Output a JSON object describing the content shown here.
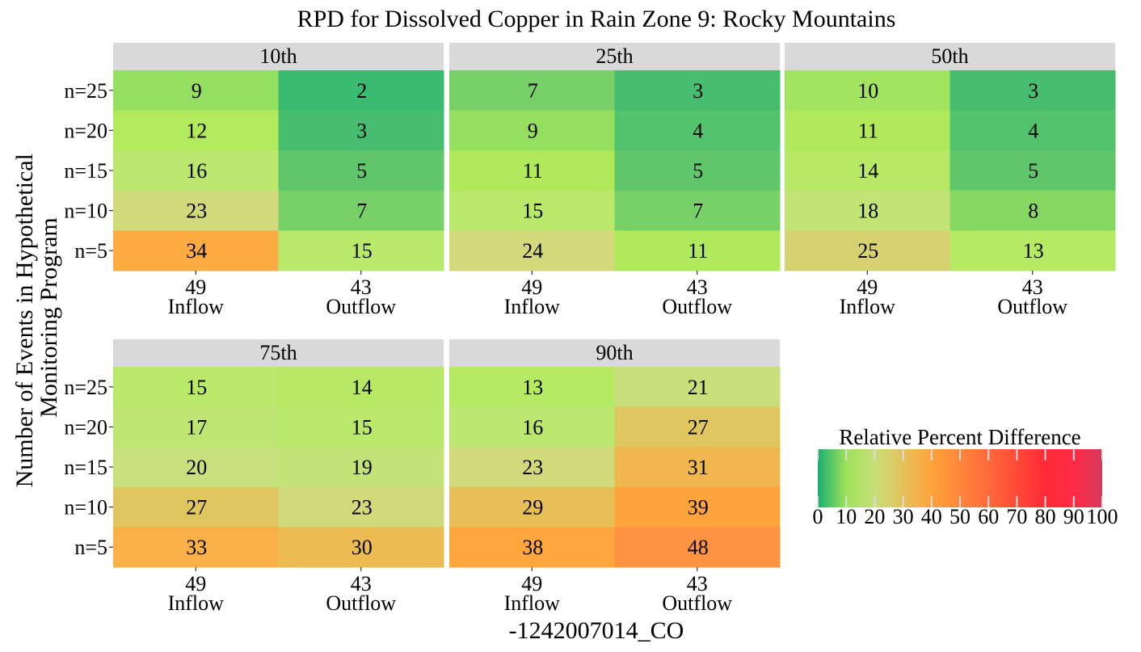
{
  "chart_data": {
    "type": "heatmap",
    "title": "RPD for Dissolved Copper in Rain Zone 9: Rocky Mountains",
    "xlabel": "-1242007014_CO",
    "ylabel_lines": [
      "Number of Events in Hypothetical",
      "Monitoring Program"
    ],
    "rows": [
      "n=25",
      "n=20",
      "n=15",
      "n=10",
      "n=5"
    ],
    "columns": [
      {
        "count": "49",
        "name": "Inflow"
      },
      {
        "count": "43",
        "name": "Outflow"
      }
    ],
    "panels": [
      {
        "label": "10th",
        "values": [
          [
            9,
            2
          ],
          [
            12,
            3
          ],
          [
            16,
            5
          ],
          [
            23,
            7
          ],
          [
            34,
            15
          ]
        ]
      },
      {
        "label": "25th",
        "values": [
          [
            7,
            3
          ],
          [
            9,
            4
          ],
          [
            11,
            5
          ],
          [
            15,
            7
          ],
          [
            24,
            11
          ]
        ]
      },
      {
        "label": "50th",
        "values": [
          [
            10,
            3
          ],
          [
            11,
            4
          ],
          [
            14,
            5
          ],
          [
            18,
            8
          ],
          [
            25,
            13
          ]
        ]
      },
      {
        "label": "75th",
        "values": [
          [
            15,
            14
          ],
          [
            17,
            15
          ],
          [
            20,
            19
          ],
          [
            27,
            23
          ],
          [
            33,
            30
          ]
        ]
      },
      {
        "label": "90th",
        "values": [
          [
            13,
            21
          ],
          [
            16,
            27
          ],
          [
            23,
            31
          ],
          [
            29,
            39
          ],
          [
            38,
            48
          ]
        ]
      }
    ],
    "legend": {
      "title": "Relative Percent Difference",
      "ticks": [
        0,
        10,
        20,
        30,
        40,
        50,
        60,
        70,
        80,
        90,
        100
      ],
      "range": [
        0,
        100
      ],
      "gradient": [
        {
          "value": 0,
          "color": "#1aae6f"
        },
        {
          "value": 10,
          "color": "#9ee25a"
        },
        {
          "value": 20,
          "color": "#c8df7a"
        },
        {
          "value": 40,
          "color": "#ffa33a"
        },
        {
          "value": 60,
          "color": "#ff6a3a"
        },
        {
          "value": 80,
          "color": "#ff2a36"
        },
        {
          "value": 90,
          "color": "#ff2a45"
        },
        {
          "value": 100,
          "color": "#d43a5c"
        }
      ]
    },
    "cell_colors": [
      {
        "value": 2,
        "color": "#3bba72"
      },
      {
        "value": 5,
        "color": "#5fc76a"
      },
      {
        "value": 7,
        "color": "#77d166"
      },
      {
        "value": 9,
        "color": "#94de60"
      },
      {
        "value": 11,
        "color": "#b0ea5a"
      },
      {
        "value": 15,
        "color": "#b9e96a"
      },
      {
        "value": 20,
        "color": "#c6e17d"
      },
      {
        "value": 24,
        "color": "#d3d87a"
      },
      {
        "value": 27,
        "color": "#dfc65f"
      },
      {
        "value": 30,
        "color": "#ecbb52"
      },
      {
        "value": 34,
        "color": "#fdac42"
      },
      {
        "value": 39,
        "color": "#ffa43c"
      },
      {
        "value": 48,
        "color": "#fe9442"
      }
    ]
  }
}
